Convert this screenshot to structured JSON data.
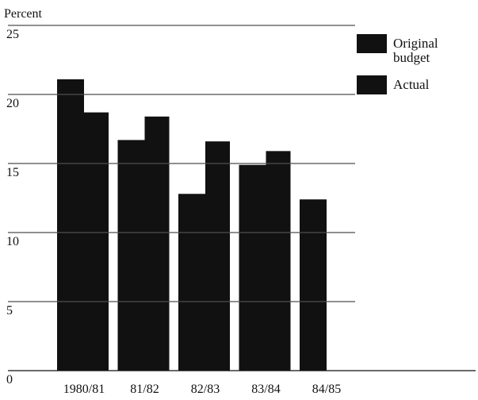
{
  "chart_data": {
    "type": "bar",
    "y_label": "Percent",
    "categories": [
      "1980/81",
      "81/82",
      "82/83",
      "83/84",
      "84/85"
    ],
    "series": [
      {
        "name": "Original budget",
        "color": "#111111",
        "values": [
          21.1,
          16.7,
          12.8,
          14.9,
          12.4
        ]
      },
      {
        "name": "Actual",
        "color": "#111111",
        "values": [
          18.7,
          18.4,
          16.6,
          15.9,
          null
        ]
      }
    ],
    "ylim": [
      0,
      25
    ],
    "yticks": [
      0,
      5,
      10,
      15,
      20,
      25
    ],
    "grid": true,
    "legend": "top-right"
  }
}
